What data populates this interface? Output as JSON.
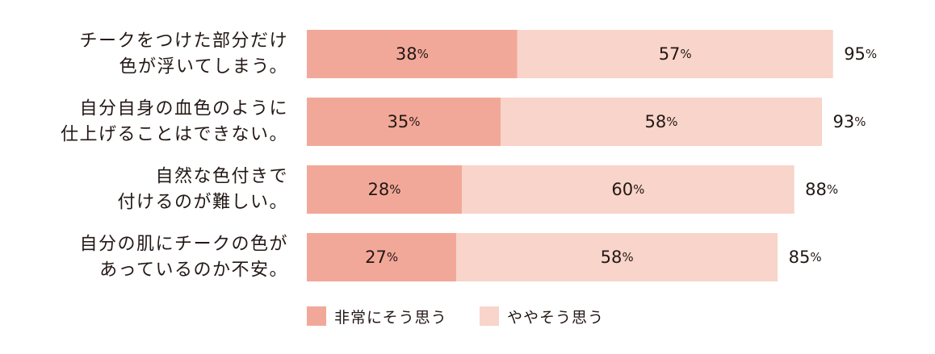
{
  "chart_data": {
    "type": "bar",
    "orientation": "horizontal",
    "stacked": true,
    "categories": [
      [
        "チークをつけた部分だけ",
        "色が浮いてしまう。"
      ],
      [
        "自分自身の血色のように",
        "仕上げることはできない。"
      ],
      [
        "自然な色付きで",
        "付けるのが難しい。"
      ],
      [
        "自分の肌にチークの色が",
        "あっているのか不安。"
      ]
    ],
    "series": [
      {
        "name": "非常にそう思う",
        "color": "#f2a899",
        "values": [
          38,
          35,
          28,
          27
        ]
      },
      {
        "name": "ややそう思う",
        "color": "#f8d4ca",
        "values": [
          57,
          58,
          60,
          58
        ]
      }
    ],
    "totals": [
      95,
      93,
      88,
      85
    ],
    "unit": "%",
    "xlim": [
      0,
      100
    ],
    "grid": false,
    "legend_position": "bottom"
  }
}
